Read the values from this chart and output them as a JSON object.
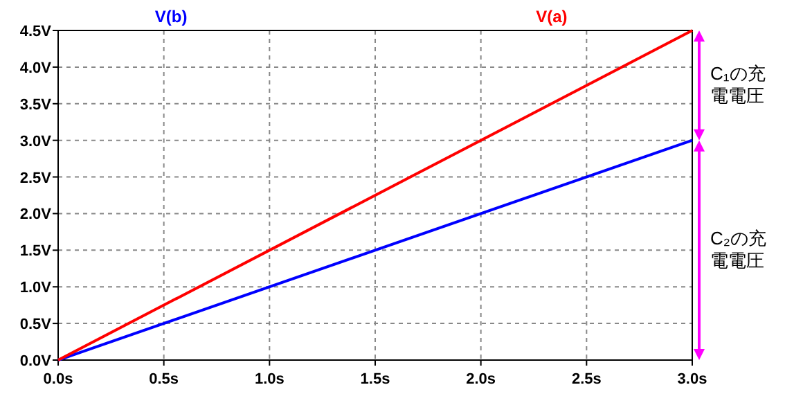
{
  "chart_data": {
    "type": "line",
    "x": [
      0,
      3
    ],
    "series": [
      {
        "name": "V(b)",
        "color": "#0000ff",
        "values": [
          0,
          3
        ]
      },
      {
        "name": "V(a)",
        "color": "#ff0000",
        "values": [
          0,
          4.5
        ]
      }
    ],
    "xlim": [
      0,
      3
    ],
    "ylim": [
      0,
      4.5
    ],
    "xticks": [
      {
        "value": 0,
        "label": "0.0s"
      },
      {
        "value": 0.5,
        "label": "0.5s"
      },
      {
        "value": 1,
        "label": "1.0s"
      },
      {
        "value": 1.5,
        "label": "1.5s"
      },
      {
        "value": 2,
        "label": "2.0s"
      },
      {
        "value": 2.5,
        "label": "2.5s"
      },
      {
        "value": 3,
        "label": "3.0s"
      }
    ],
    "yticks": [
      {
        "value": 0,
        "label": "0.0V"
      },
      {
        "value": 0.5,
        "label": "0.5V"
      },
      {
        "value": 1,
        "label": "1.0V"
      },
      {
        "value": 1.5,
        "label": "1.5V"
      },
      {
        "value": 2,
        "label": "2.0V"
      },
      {
        "value": 2.5,
        "label": "2.5V"
      },
      {
        "value": 3,
        "label": "3.0V"
      },
      {
        "value": 3.5,
        "label": "3.5V"
      },
      {
        "value": 4,
        "label": "4.0V"
      },
      {
        "value": 4.5,
        "label": "4.5V"
      }
    ],
    "grid": true,
    "legend": "top",
    "line_style": "solid",
    "annotations": [
      "C₁の充電電圧",
      "C₂の充電電圧"
    ]
  }
}
